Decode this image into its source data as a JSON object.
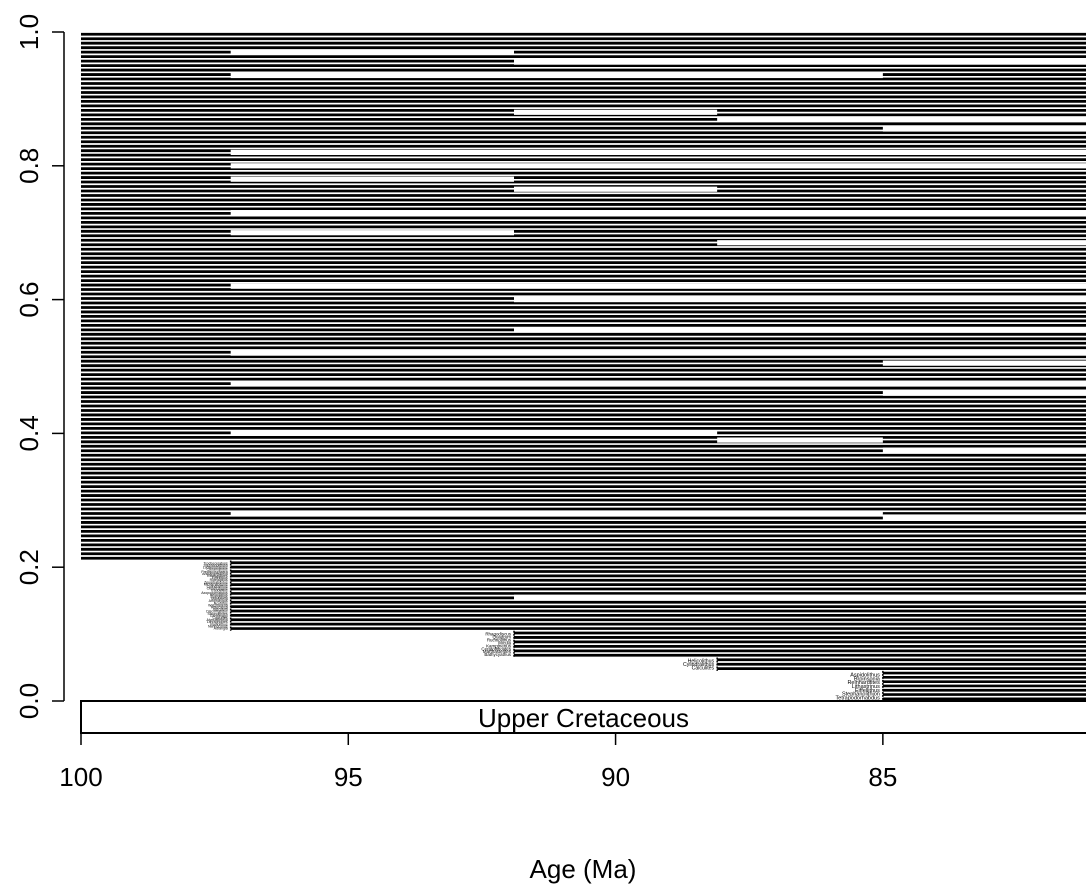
{
  "chart_data": {
    "type": "line",
    "xlabel": "Age (Ma)",
    "ylabel": "",
    "xlim": [
      100,
      81.2
    ],
    "ylim": [
      0,
      1
    ],
    "x_ticks": [
      {
        "value": 100,
        "label": "100"
      },
      {
        "value": 95,
        "label": "95"
      },
      {
        "value": 90,
        "label": "90"
      },
      {
        "value": 85,
        "label": "85"
      }
    ],
    "y_ticks": [
      {
        "value": 0.0,
        "label": "0.0"
      },
      {
        "value": 0.2,
        "label": "0.2"
      },
      {
        "value": 0.4,
        "label": "0.4"
      },
      {
        "value": 0.6,
        "label": "0.6"
      },
      {
        "value": 0.8,
        "label": "0.8"
      },
      {
        "value": 1.0,
        "label": "1.0"
      }
    ],
    "period": {
      "label": "Upper Cretaceous",
      "start": 100,
      "end": 81.2
    },
    "bin_edges": [
      100,
      97.2,
      91.9,
      88.1,
      85.0,
      81.2
    ],
    "cohorts": [
      {
        "start": 100,
        "y_min": 0.21,
        "y_max": 1.0,
        "lines": 118
      },
      {
        "start": 97.2,
        "y_min": 0.105,
        "y_max": 0.21,
        "lines": 16
      },
      {
        "start": 91.9,
        "y_min": 0.065,
        "y_max": 0.105,
        "lines": 6
      },
      {
        "start": 88.1,
        "y_min": 0.045,
        "y_max": 0.065,
        "lines": 3
      },
      {
        "start": 85.0,
        "y_min": 0.0,
        "y_max": 0.045,
        "lines": 7
      }
    ],
    "gaps": [
      {
        "y": 0.97,
        "from": 97.2,
        "to": 91.9
      },
      {
        "y": 0.955,
        "from": 91.9,
        "to": 81.2
      },
      {
        "y": 0.935,
        "from": 97.2,
        "to": 85.0
      },
      {
        "y": 0.88,
        "from": 91.9,
        "to": 88.1
      },
      {
        "y": 0.87,
        "from": 88.1,
        "to": 81.2
      },
      {
        "y": 0.855,
        "from": 85.0,
        "to": 81.2
      },
      {
        "y": 0.82,
        "from": 97.2,
        "to": 81.2
      },
      {
        "y": 0.8,
        "from": 97.2,
        "to": 81.2
      },
      {
        "y": 0.78,
        "from": 97.2,
        "to": 91.9
      },
      {
        "y": 0.765,
        "from": 91.9,
        "to": 88.1
      },
      {
        "y": 0.73,
        "from": 97.2,
        "to": 81.2
      },
      {
        "y": 0.7,
        "from": 97.2,
        "to": 91.9
      },
      {
        "y": 0.685,
        "from": 88.1,
        "to": 81.2
      },
      {
        "y": 0.62,
        "from": 97.2,
        "to": 81.2
      },
      {
        "y": 0.6,
        "from": 91.9,
        "to": 81.2
      },
      {
        "y": 0.555,
        "from": 91.9,
        "to": 81.2
      },
      {
        "y": 0.52,
        "from": 97.2,
        "to": 81.2
      },
      {
        "y": 0.505,
        "from": 85.0,
        "to": 81.2
      },
      {
        "y": 0.475,
        "from": 97.2,
        "to": 81.2
      },
      {
        "y": 0.46,
        "from": 85.0,
        "to": 81.2
      },
      {
        "y": 0.4,
        "from": 97.2,
        "to": 88.1
      },
      {
        "y": 0.39,
        "from": 88.1,
        "to": 85.0
      },
      {
        "y": 0.375,
        "from": 85.0,
        "to": 81.2
      },
      {
        "y": 0.28,
        "from": 97.2,
        "to": 85.0
      },
      {
        "y": 0.275,
        "from": 85.0,
        "to": 81.2
      },
      {
        "y": 0.155,
        "from": 91.9,
        "to": 81.2
      }
    ],
    "first_cohort_taxa_visible": [
      "Trochoceratops",
      "Stephanolithion",
      "Lucianorhabdus",
      "Cretarhabdus",
      "Prediscosphaera",
      "Arkhangelskiella",
      "Reinhardtites",
      "Eiffellithus",
      "Rotelapillus",
      "Zeugrhabdotus",
      "Microrhabdulus",
      "Cylindralithus",
      "Chiastozygus",
      "Tranolithus",
      "Axopodorhabdus",
      "Helicolithus",
      "Bukrylithus",
      "Manivitella",
      "Amphizygus",
      "Acuturris",
      "Watznaueria",
      "Retecapsa",
      "Biscutum",
      "Discorhabdus",
      "Staurolithites",
      "Gartnerago",
      "Calculites",
      "Ahmuellerella",
      "Lithraphidites",
      "Radiolithus",
      "Nannoconus",
      "Adrangia"
    ],
    "second_cohort_taxa_visible": [
      "Rhagodiscus",
      "Quadrum",
      "Rucinolithus",
      "Micula",
      "Kamptnerius",
      "Ceratolithoides",
      "Marthasterites",
      "Bathycyathus"
    ],
    "third_cohort_taxa_visible": [
      "Helicolithus",
      "Cylindralithus",
      "Calculites"
    ],
    "fourth_cohort_taxa_visible": [
      "Aspidolithus",
      "Broinsonia",
      "Reinhardtites",
      "Lithastrinus",
      "Eiffellithus",
      "Stephanolithion",
      "Tetrapodorhabdus"
    ]
  }
}
